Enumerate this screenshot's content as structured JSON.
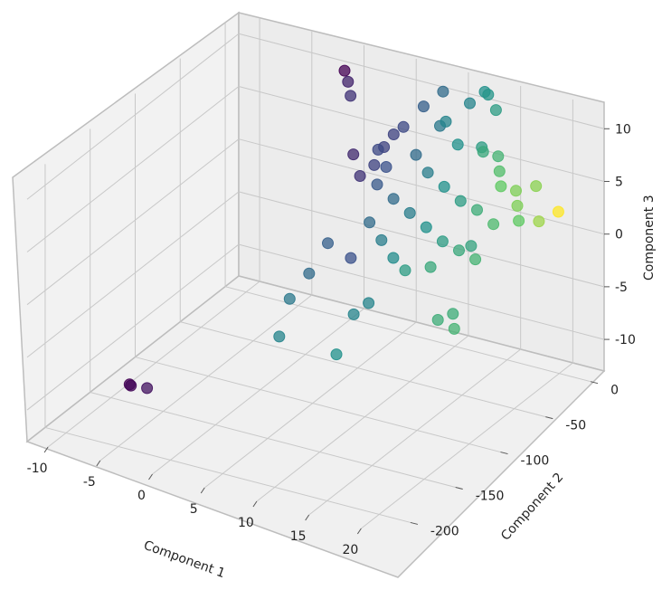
{
  "chart_data": {
    "type": "scatter",
    "title": "",
    "xlabel": "Component 1",
    "ylabel": "Component 2",
    "zlabel": "Component 3",
    "xlim": [
      -12,
      23
    ],
    "ylim": [
      -220,
      15
    ],
    "zlim": [
      -13,
      12
    ],
    "x_ticks": [
      "-10",
      "-5",
      "0",
      "5",
      "10",
      "15",
      "20"
    ],
    "y_ticks": [
      "0",
      "-50",
      "-100",
      "-150",
      "-200"
    ],
    "z_ticks": [
      "10",
      "5",
      "0",
      "-5",
      "-10"
    ],
    "grid": true,
    "colormap": "viridis",
    "colors": {
      "low": "#440154",
      "mid_low": "#3b528b",
      "mid": "#21918c",
      "mid_high": "#5ec962",
      "high": "#fde725",
      "pane": "#f2f2f2",
      "grid": "#c8c8c8"
    },
    "points": [
      {
        "x": -6.5,
        "y": -170,
        "z": -9.5,
        "c": 0.0
      },
      {
        "x": -6.2,
        "y": -172,
        "z": -9.4,
        "c": 0.02
      },
      {
        "x": -5.0,
        "y": -168,
        "z": -9.6,
        "c": 0.05
      },
      {
        "x": -1.0,
        "y": 5,
        "z": 10.0,
        "c": 0.0
      },
      {
        "x": -0.5,
        "y": 3,
        "z": 9.2,
        "c": 0.1
      },
      {
        "x": 0.0,
        "y": 0,
        "z": 8.2,
        "c": 0.15
      },
      {
        "x": 3.0,
        "y": -60,
        "z": -1.0,
        "c": 0.3
      },
      {
        "x": 2.5,
        "y": -75,
        "z": -3.0,
        "c": 0.35
      },
      {
        "x": 1.5,
        "y": -85,
        "z": -5.0,
        "c": 0.4
      },
      {
        "x": 1.8,
        "y": -100,
        "z": -7.5,
        "c": 0.45
      },
      {
        "x": 4.0,
        "y": -20,
        "z": 4.0,
        "c": 0.2
      },
      {
        "x": 4.5,
        "y": -15,
        "z": 5.5,
        "c": 0.2
      },
      {
        "x": 5.0,
        "y": -10,
        "z": 6.5,
        "c": 0.2
      },
      {
        "x": 4.8,
        "y": -25,
        "z": 6.0,
        "c": 0.22
      },
      {
        "x": 5.5,
        "y": -5,
        "z": 7.0,
        "c": 0.22
      },
      {
        "x": 6.0,
        "y": -30,
        "z": 5.0,
        "c": 0.25
      },
      {
        "x": 7.0,
        "y": 0,
        "z": 9.0,
        "c": 0.3
      },
      {
        "x": 8.0,
        "y": 10,
        "z": 10.0,
        "c": 0.35
      },
      {
        "x": 9.0,
        "y": -5,
        "z": 8.0,
        "c": 0.4
      },
      {
        "x": 10.0,
        "y": -10,
        "z": 9.0,
        "c": 0.45
      },
      {
        "x": 11.0,
        "y": 5,
        "z": 10.0,
        "c": 0.45
      },
      {
        "x": 12.0,
        "y": -20,
        "z": 8.0,
        "c": 0.5
      },
      {
        "x": 13.0,
        "y": -5,
        "z": 7.0,
        "c": 0.55
      },
      {
        "x": 14.0,
        "y": -15,
        "z": 7.5,
        "c": 0.6
      },
      {
        "x": 15.0,
        "y": -10,
        "z": 7.0,
        "c": 0.65
      },
      {
        "x": 16.0,
        "y": -20,
        "z": 6.5,
        "c": 0.7
      },
      {
        "x": 17.0,
        "y": -30,
        "z": 6.0,
        "c": 0.75
      },
      {
        "x": 18.0,
        "y": -25,
        "z": 5.5,
        "c": 0.8
      },
      {
        "x": 19.0,
        "y": -35,
        "z": 5.0,
        "c": 0.8
      },
      {
        "x": 19.5,
        "y": -20,
        "z": 6.0,
        "c": 0.82
      },
      {
        "x": 6.0,
        "y": -40,
        "z": 4.0,
        "c": 0.28
      },
      {
        "x": 8.0,
        "y": -45,
        "z": 3.5,
        "c": 0.35
      },
      {
        "x": 10.0,
        "y": -50,
        "z": 3.0,
        "c": 0.42
      },
      {
        "x": 12.0,
        "y": -55,
        "z": 2.5,
        "c": 0.5
      },
      {
        "x": 14.0,
        "y": -60,
        "z": 2.0,
        "c": 0.55
      },
      {
        "x": 16.0,
        "y": -65,
        "z": 2.0,
        "c": 0.6
      },
      {
        "x": 18.0,
        "y": -70,
        "z": 2.0,
        "c": 0.65
      },
      {
        "x": 7.0,
        "y": -60,
        "z": 2.0,
        "c": 0.35
      },
      {
        "x": 9.0,
        "y": -70,
        "z": 1.5,
        "c": 0.42
      },
      {
        "x": 11.0,
        "y": -80,
        "z": 1.0,
        "c": 0.48
      },
      {
        "x": 13.0,
        "y": -90,
        "z": 1.0,
        "c": 0.55
      },
      {
        "x": 15.0,
        "y": -85,
        "z": 1.5,
        "c": 0.6
      },
      {
        "x": 8.0,
        "y": -20,
        "z": 6.0,
        "c": 0.35
      },
      {
        "x": 10.0,
        "y": -30,
        "z": 5.5,
        "c": 0.42
      },
      {
        "x": 12.0,
        "y": -35,
        "z": 5.0,
        "c": 0.5
      },
      {
        "x": 14.0,
        "y": -40,
        "z": 4.5,
        "c": 0.55
      },
      {
        "x": 16.0,
        "y": -45,
        "z": 4.5,
        "c": 0.62
      },
      {
        "x": 18.0,
        "y": -50,
        "z": 4.0,
        "c": 0.68
      },
      {
        "x": 20.0,
        "y": -45,
        "z": 4.5,
        "c": 0.75
      },
      {
        "x": 21.5,
        "y": -40,
        "z": 4.5,
        "c": 0.85
      },
      {
        "x": 22.5,
        "y": -30,
        "z": 5.0,
        "c": 1.0
      },
      {
        "x": 8.5,
        "y": -95,
        "z": -4.0,
        "c": 0.45
      },
      {
        "x": 9.5,
        "y": -90,
        "z": -3.0,
        "c": 0.45
      },
      {
        "x": 17.0,
        "y": -100,
        "z": -2.0,
        "c": 0.62
      },
      {
        "x": 18.0,
        "y": -95,
        "z": -1.5,
        "c": 0.62
      },
      {
        "x": 19.0,
        "y": -105,
        "z": -2.0,
        "c": 0.65
      },
      {
        "x": 12.0,
        "y": 10,
        "z": 11.0,
        "c": 0.5
      },
      {
        "x": 12.5,
        "y": 8,
        "z": 11.0,
        "c": 0.52
      },
      {
        "x": 13.5,
        "y": 5,
        "z": 10.0,
        "c": 0.55
      },
      {
        "x": 9.0,
        "y": -120,
        "z": -6.0,
        "c": 0.5
      },
      {
        "x": 15.0,
        "y": -40,
        "z": 0.5,
        "c": 0.58
      },
      {
        "x": 6.5,
        "y": -75,
        "z": -0.5,
        "c": 0.25
      },
      {
        "x": 3.5,
        "y": -30,
        "z": 3.5,
        "c": 0.15
      },
      {
        "x": 2.0,
        "y": -20,
        "z": 4.5,
        "c": 0.12
      }
    ]
  }
}
